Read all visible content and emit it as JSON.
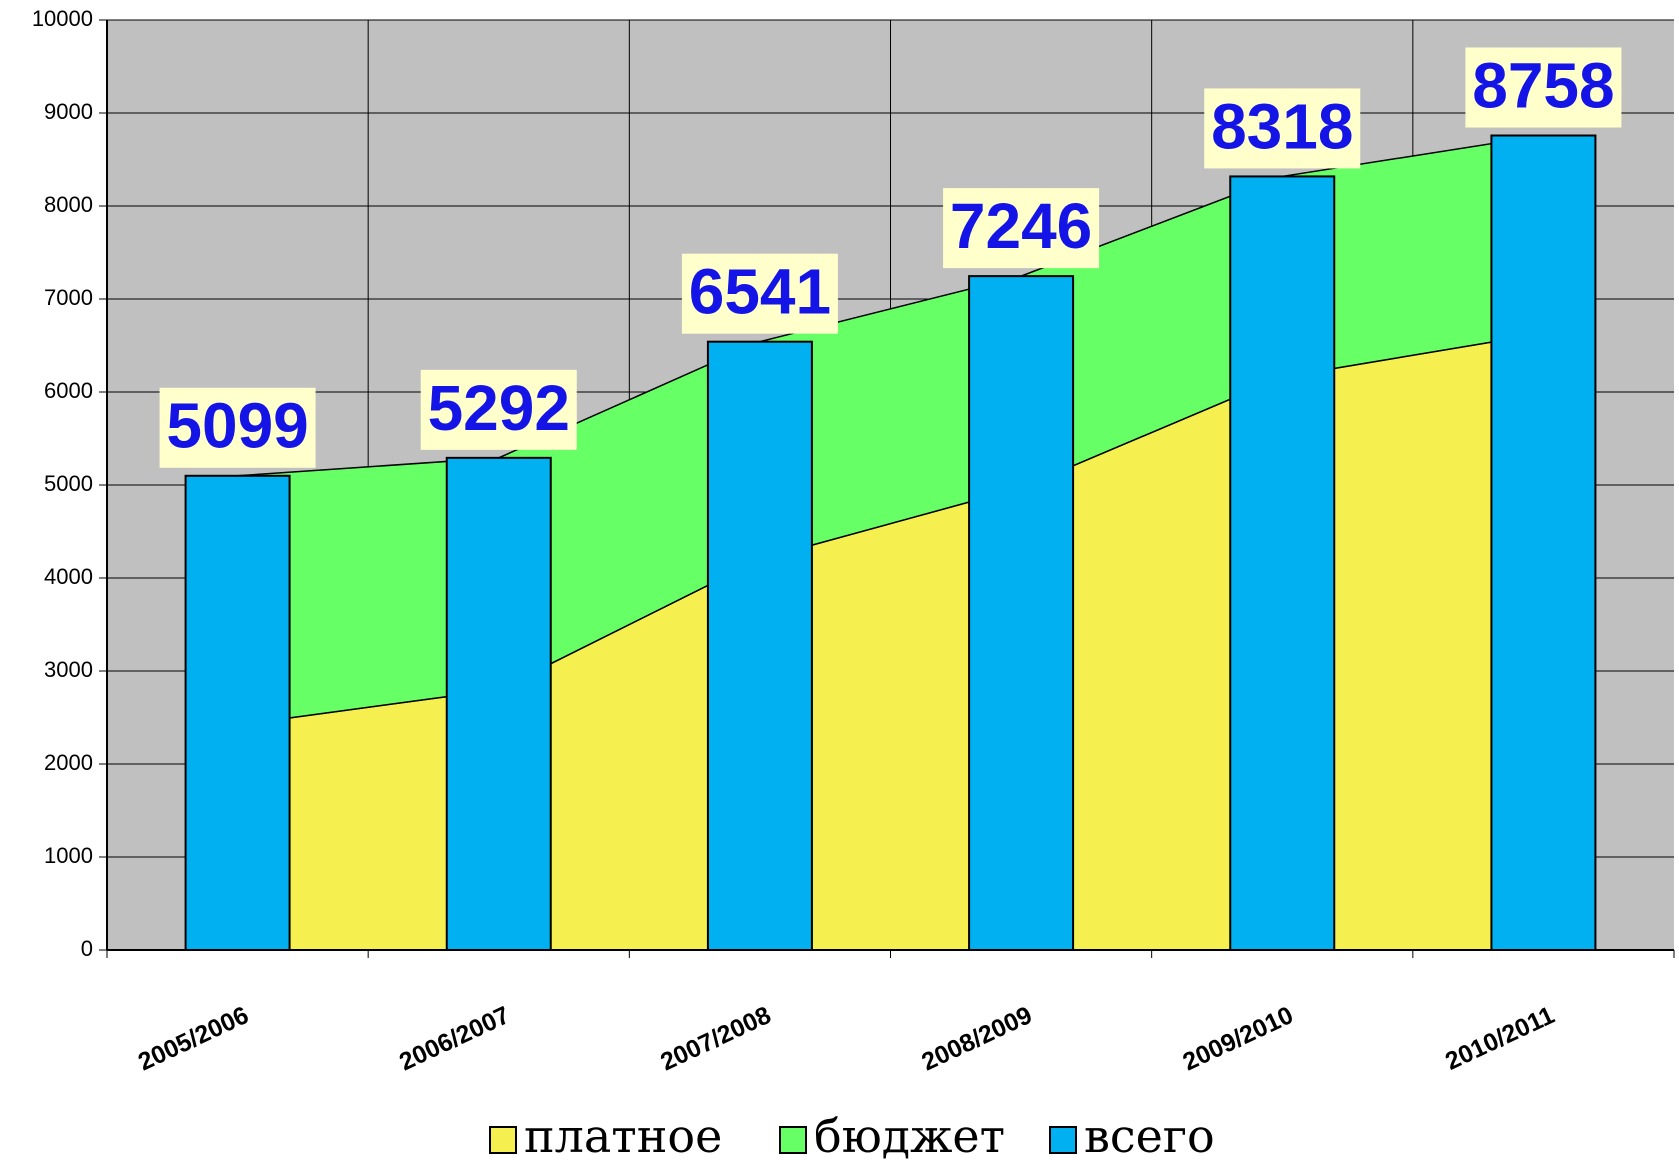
{
  "chart_data": {
    "type": "combo",
    "categories": [
      "2005/2006",
      "2006/2007",
      "2007/2008",
      "2008/2009",
      "2009/2010",
      "2010/2011"
    ],
    "series": [
      {
        "name": "платное",
        "type": "area",
        "color": "#f5f050",
        "values": [
          2420,
          2800,
          4200,
          4970,
          6160,
          6630
        ]
      },
      {
        "name": "бюджет",
        "type": "area",
        "color": "#66ff66",
        "values": [
          2679,
          2492,
          2341,
          2276,
          2158,
          2128
        ]
      },
      {
        "name": "всего",
        "type": "bar",
        "color": "#00b0f0",
        "values": [
          5099,
          5292,
          6541,
          7246,
          8318,
          8758
        ]
      }
    ],
    "ylim": [
      0,
      10000
    ],
    "yticks": [
      0,
      1000,
      2000,
      3000,
      4000,
      5000,
      6000,
      7000,
      8000,
      9000,
      10000
    ],
    "grid": true,
    "stacked_areas": true,
    "data_labels": true,
    "legend": "bottom"
  }
}
